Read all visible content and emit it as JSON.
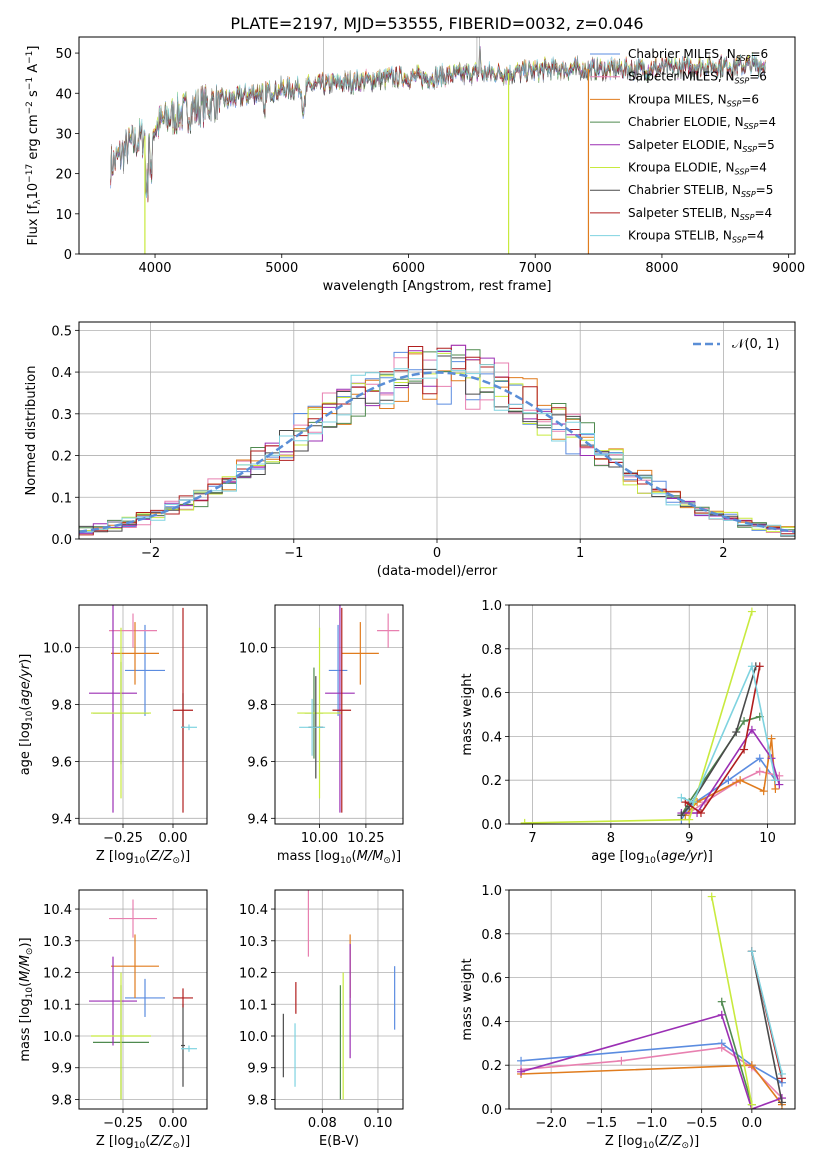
{
  "title": "PLATE=2197, MJD=53555, FIBERID=0032, z=0.046",
  "colors": {
    "Chabrier MILES": "#5b8ce0",
    "Salpeter MILES": "#e880b0",
    "Kroupa MILES": "#e07c1e",
    "Chabrier ELODIE": "#4f8a4f",
    "Salpeter ELODIE": "#9b2fb4",
    "Kroupa ELODIE": "#c8ea3e",
    "Chabrier STELIB": "#4a4a4a",
    "Salpeter STELIB": "#b01e1e",
    "Kroupa STELIB": "#7fd3e0"
  },
  "chart_data": [
    {
      "id": "spectrum",
      "type": "line",
      "title": "PLATE=2197, MJD=53555, FIBERID=0032, z=0.046",
      "xlabel": "wavelength [Angstrom, rest frame]",
      "ylabel": "Flux [f_λ10^-17 erg cm^-2 s^-1 A^-1]",
      "xlim": [
        3400,
        9050
      ],
      "ylim": [
        0,
        54
      ],
      "xticks": [
        "4000",
        "5000",
        "6000",
        "7000",
        "8000",
        "9000"
      ],
      "yticks": [
        "0",
        "10",
        "20",
        "30",
        "40",
        "50"
      ],
      "legend_position": "right",
      "legend": [
        "Chabrier MILES, N_SSP=6",
        "Salpeter MILES, N_SSP=6",
        "Kroupa MILES, N_SSP=6",
        "Chabrier ELODIE, N_SSP=4",
        "Salpeter ELODIE, N_SSP=5",
        "Kroupa ELODIE, N_SSP=4",
        "Chabrier STELIB, N_SSP=5",
        "Salpeter STELIB, N_SSP=4",
        "Kroupa STELIB, N_SSP=4"
      ],
      "continuum": {
        "x": [
          3650,
          3800,
          3950,
          4100,
          4300,
          4500,
          4800,
          5000,
          5300,
          5600,
          5900,
          6200,
          6500,
          6800,
          7100,
          7400,
          7800,
          8200,
          8600,
          8800
        ],
        "y": [
          22,
          27,
          30,
          34,
          36,
          38,
          40,
          41,
          42,
          43,
          44,
          44,
          45,
          45,
          46,
          46,
          46,
          46.5,
          47,
          47
        ]
      },
      "drops": [
        {
          "series": "Kroupa ELODIE",
          "x": 3920,
          "end": 0
        },
        {
          "series": "Kroupa ELODIE",
          "x": 6790,
          "end": 0
        },
        {
          "series": "Kroupa MILES",
          "x": 7420,
          "end": 0
        }
      ]
    },
    {
      "id": "residuals",
      "type": "area",
      "xlabel": "(data-model)/error",
      "ylabel": "Normed distribution",
      "xlim": [
        -2.5,
        2.5
      ],
      "ylim": [
        0,
        0.52
      ],
      "xticks": [
        "−2",
        "−1",
        "0",
        "1",
        "2"
      ],
      "yticks": [
        "0.0",
        "0.1",
        "0.2",
        "0.3",
        "0.4",
        "0.5"
      ],
      "grid": true,
      "legend_position": "top-right",
      "reference_label": "𝒩(0, 1)",
      "bin_width": 0.1
    },
    {
      "id": "age_vs_Z",
      "type": "scatter",
      "xlabel": "Z [log10(Z/Z⊙)]",
      "ylabel": "age [log10(age/yr)]",
      "xlim": [
        -0.47,
        0.17
      ],
      "ylim": [
        9.38,
        10.15
      ],
      "xticks": [
        "−0.25",
        "0.00"
      ],
      "yticks": [
        "9.4",
        "9.6",
        "9.8",
        "10.0"
      ],
      "grid": true,
      "points": [
        {
          "series": "Chabrier MILES",
          "x": -0.14,
          "xerr": 0.1,
          "y": 9.92,
          "yerr": 0.16
        },
        {
          "series": "Salpeter MILES",
          "x": -0.2,
          "xerr": 0.12,
          "y": 10.06,
          "yerr": 0.06
        },
        {
          "series": "Kroupa MILES",
          "x": -0.19,
          "xerr": 0.12,
          "y": 9.98,
          "yerr": 0.11
        },
        {
          "series": "Chabrier ELODIE",
          "x": -0.26,
          "xerr": 0.14,
          "y": 9.77,
          "yerr": 0.18
        },
        {
          "series": "Salpeter ELODIE",
          "x": -0.3,
          "xerr": 0.12,
          "y": 9.84,
          "yerr": 0.42
        },
        {
          "series": "Kroupa ELODIE",
          "x": -0.26,
          "xerr": 0.15,
          "y": 9.77,
          "yerr": 0.3
        },
        {
          "series": "Chabrier STELIB",
          "x": 0.05,
          "xerr": 0.01,
          "y": 9.72,
          "yerr": 0.12
        },
        {
          "series": "Salpeter STELIB",
          "x": 0.05,
          "xerr": 0.05,
          "y": 9.78,
          "yerr": 0.36
        },
        {
          "series": "Kroupa STELIB",
          "x": 0.08,
          "xerr": 0.04,
          "y": 9.72,
          "yerr": 0.01
        }
      ]
    },
    {
      "id": "age_vs_mass",
      "type": "scatter",
      "xlabel": "mass [log10(M/M⊙)]",
      "ylabel": "",
      "xlim": [
        9.76,
        10.45
      ],
      "ylim": [
        9.38,
        10.15
      ],
      "xticks": [
        "10.00",
        "10.25"
      ],
      "yticks": [
        "9.4",
        "9.6",
        "9.8",
        "10.0"
      ],
      "grid": true,
      "points": [
        {
          "series": "Chabrier MILES",
          "x": 10.1,
          "xerr": 0.05,
          "y": 9.92,
          "yerr": 0.16
        },
        {
          "series": "Salpeter MILES",
          "x": 10.37,
          "xerr": 0.06,
          "y": 10.06,
          "yerr": 0.06
        },
        {
          "series": "Kroupa MILES",
          "x": 10.22,
          "xerr": 0.1,
          "y": 9.98,
          "yerr": 0.11
        },
        {
          "series": "Chabrier ELODIE",
          "x": 9.97,
          "xerr": 0.05,
          "y": 9.77,
          "yerr": 0.16
        },
        {
          "series": "Salpeter ELODIE",
          "x": 10.11,
          "xerr": 0.08,
          "y": 9.84,
          "yerr": 0.42
        },
        {
          "series": "Kroupa ELODIE",
          "x": 10.0,
          "xerr": 0.12,
          "y": 9.77,
          "yerr": 0.3
        },
        {
          "series": "Chabrier STELIB",
          "x": 9.98,
          "xerr": 0.04,
          "y": 9.72,
          "yerr": 0.18
        },
        {
          "series": "Salpeter STELIB",
          "x": 10.12,
          "xerr": 0.05,
          "y": 9.78,
          "yerr": 0.36
        },
        {
          "series": "Kroupa STELIB",
          "x": 9.96,
          "xerr": 0.07,
          "y": 9.72,
          "yerr": 0.1
        }
      ]
    },
    {
      "id": "weight_vs_age",
      "type": "line",
      "xlabel": "age [log10(age/yr)]",
      "ylabel": "mass weight",
      "xlim": [
        6.7,
        10.35
      ],
      "ylim": [
        0,
        1
      ],
      "xticks": [
        "7",
        "8",
        "9",
        "10"
      ],
      "yticks": [
        "0.0",
        "0.2",
        "0.4",
        "0.6",
        "0.8",
        "1.0"
      ],
      "grid": true,
      "series": [
        {
          "series": "Chabrier MILES",
          "x": [
            8.9,
            9.0,
            9.5,
            9.9,
            10.1
          ],
          "y": [
            0.02,
            0.08,
            0.2,
            0.3,
            0.2
          ]
        },
        {
          "series": "Salpeter MILES",
          "x": [
            9.0,
            9.2,
            9.6,
            9.9,
            10.15
          ],
          "y": [
            0.05,
            0.1,
            0.19,
            0.24,
            0.22
          ]
        },
        {
          "series": "Kroupa MILES",
          "x": [
            8.95,
            9.1,
            9.65,
            9.95,
            10.05,
            10.1
          ],
          "y": [
            0.04,
            0.1,
            0.2,
            0.15,
            0.39,
            0.16
          ]
        },
        {
          "series": "Chabrier ELODIE",
          "x": [
            8.9,
            9.0,
            9.7,
            9.9
          ],
          "y": [
            0.04,
            0.1,
            0.47,
            0.49
          ]
        },
        {
          "series": "Salpeter ELODIE",
          "x": [
            8.9,
            9.1,
            9.8,
            10.05,
            10.15
          ],
          "y": [
            0.05,
            0.05,
            0.43,
            0.3,
            0.18
          ]
        },
        {
          "series": "Kroupa ELODIE",
          "x": [
            6.9,
            9.0,
            9.8
          ],
          "y": [
            0.005,
            0.02,
            0.97
          ]
        },
        {
          "series": "Chabrier STELIB",
          "x": [
            8.9,
            9.0,
            9.6,
            9.85
          ],
          "y": [
            0.04,
            0.08,
            0.42,
            0.72
          ]
        },
        {
          "series": "Salpeter STELIB",
          "x": [
            8.95,
            9.15,
            9.7,
            9.9
          ],
          "y": [
            0.1,
            0.05,
            0.34,
            0.72
          ]
        },
        {
          "series": "Kroupa STELIB",
          "x": [
            8.9,
            9.05,
            9.8,
            10.1
          ],
          "y": [
            0.12,
            0.1,
            0.72,
            0.2
          ]
        }
      ]
    },
    {
      "id": "mass_vs_Z",
      "type": "scatter",
      "xlabel": "Z [log10(Z/Z⊙)]",
      "ylabel": "mass [log10(M/M⊙)]",
      "xlim": [
        -0.47,
        0.17
      ],
      "ylim": [
        9.77,
        10.46
      ],
      "xticks": [
        "−0.25",
        "0.00"
      ],
      "yticks": [
        "9.8",
        "9.9",
        "10.0",
        "10.1",
        "10.2",
        "10.3",
        "10.4"
      ],
      "grid": true,
      "points": [
        {
          "series": "Chabrier MILES",
          "x": -0.14,
          "xerr": 0.1,
          "y": 10.12,
          "yerr": 0.06
        },
        {
          "series": "Salpeter MILES",
          "x": -0.2,
          "xerr": 0.12,
          "y": 10.37,
          "yerr": 0.06
        },
        {
          "series": "Kroupa MILES",
          "x": -0.19,
          "xerr": 0.12,
          "y": 10.22,
          "yerr": 0.1
        },
        {
          "series": "Chabrier ELODIE",
          "x": -0.26,
          "xerr": 0.14,
          "y": 9.98,
          "yerr": 0.18
        },
        {
          "series": "Salpeter ELODIE",
          "x": -0.3,
          "xerr": 0.12,
          "y": 10.11,
          "yerr": 0.14
        },
        {
          "series": "Kroupa ELODIE",
          "x": -0.26,
          "xerr": 0.15,
          "y": 10.0,
          "yerr": 0.2
        },
        {
          "series": "Chabrier STELIB",
          "x": 0.05,
          "xerr": 0.01,
          "y": 9.97,
          "yerr": 0.13
        },
        {
          "series": "Salpeter STELIB",
          "x": 0.05,
          "xerr": 0.05,
          "y": 10.12,
          "yerr": 0.03
        },
        {
          "series": "Kroupa STELIB",
          "x": 0.08,
          "xerr": 0.04,
          "y": 9.96,
          "yerr": 0.01
        }
      ]
    },
    {
      "id": "mass_vs_ebv",
      "type": "scatter",
      "xlabel": "E(B-V)",
      "ylabel": "",
      "xlim": [
        0.063,
        0.109
      ],
      "ylim": [
        9.77,
        10.46
      ],
      "xticks": [
        "0.08",
        "0.10"
      ],
      "yticks": [
        "9.8",
        "9.9",
        "10.0",
        "10.1",
        "10.2",
        "10.3",
        "10.4"
      ],
      "grid": true,
      "points": [
        {
          "series": "Chabrier MILES",
          "x": 0.106,
          "y": 10.12,
          "yerr": 0.1
        },
        {
          "series": "Salpeter MILES",
          "x": 0.075,
          "y": 10.37,
          "yerr": 0.12
        },
        {
          "series": "Kroupa MILES",
          "x": 0.09,
          "y": 10.22,
          "yerr": 0.1
        },
        {
          "series": "Chabrier ELODIE",
          "x": 0.0865,
          "y": 9.98,
          "yerr": 0.18
        },
        {
          "series": "Salpeter ELODIE",
          "x": 0.09,
          "y": 10.11,
          "yerr": 0.18
        },
        {
          "series": "Kroupa ELODIE",
          "x": 0.0875,
          "y": 10.0,
          "yerr": 0.2
        },
        {
          "series": "Chabrier STELIB",
          "x": 0.066,
          "y": 9.97,
          "yerr": 0.1
        },
        {
          "series": "Salpeter STELIB",
          "x": 0.0705,
          "y": 10.12,
          "yerr": 0.05
        },
        {
          "series": "Kroupa STELIB",
          "x": 0.0702,
          "y": 9.94,
          "yerr": 0.1
        }
      ]
    },
    {
      "id": "weight_vs_Z",
      "type": "line",
      "xlabel": "Z [log10(Z/Z⊙)]",
      "ylabel": "mass weight",
      "xlim": [
        -2.42,
        0.43
      ],
      "ylim": [
        0,
        1
      ],
      "xticks": [
        "−2.0",
        "−1.5",
        "−1.0",
        "−0.5",
        "0.0"
      ],
      "yticks": [
        "0.0",
        "0.2",
        "0.4",
        "0.6",
        "0.8",
        "1.0"
      ],
      "grid": true,
      "series": [
        {
          "series": "Chabrier MILES",
          "x": [
            -2.3,
            -0.3,
            0.0,
            0.3
          ],
          "y": [
            0.22,
            0.3,
            0.2,
            0.12
          ]
        },
        {
          "series": "Salpeter MILES",
          "x": [
            -2.3,
            -1.3,
            -0.3,
            0.0,
            0.3
          ],
          "y": [
            0.18,
            0.22,
            0.28,
            0.19,
            0.05
          ]
        },
        {
          "series": "Kroupa MILES",
          "x": [
            -2.3,
            0.0,
            0.3
          ],
          "y": [
            0.16,
            0.2,
            0.02
          ]
        },
        {
          "series": "Chabrier ELODIE",
          "x": [
            -0.3,
            0.0
          ],
          "y": [
            0.49,
            0.02
          ]
        },
        {
          "series": "Salpeter ELODIE",
          "x": [
            -2.3,
            -0.3,
            0.0,
            0.3
          ],
          "y": [
            0.17,
            0.43,
            0.0,
            0.05
          ]
        },
        {
          "series": "Kroupa ELODIE",
          "x": [
            -0.4,
            0.0
          ],
          "y": [
            0.97,
            0.02
          ]
        },
        {
          "series": "Chabrier STELIB",
          "x": [
            0.0,
            0.3
          ],
          "y": [
            0.72,
            0.03
          ]
        },
        {
          "series": "Salpeter STELIB",
          "x": [
            0.0,
            0.3
          ],
          "y": [
            0.72,
            0.14
          ]
        },
        {
          "series": "Kroupa STELIB",
          "x": [
            0.0,
            0.3
          ],
          "y": [
            0.72,
            0.16
          ]
        }
      ]
    }
  ]
}
